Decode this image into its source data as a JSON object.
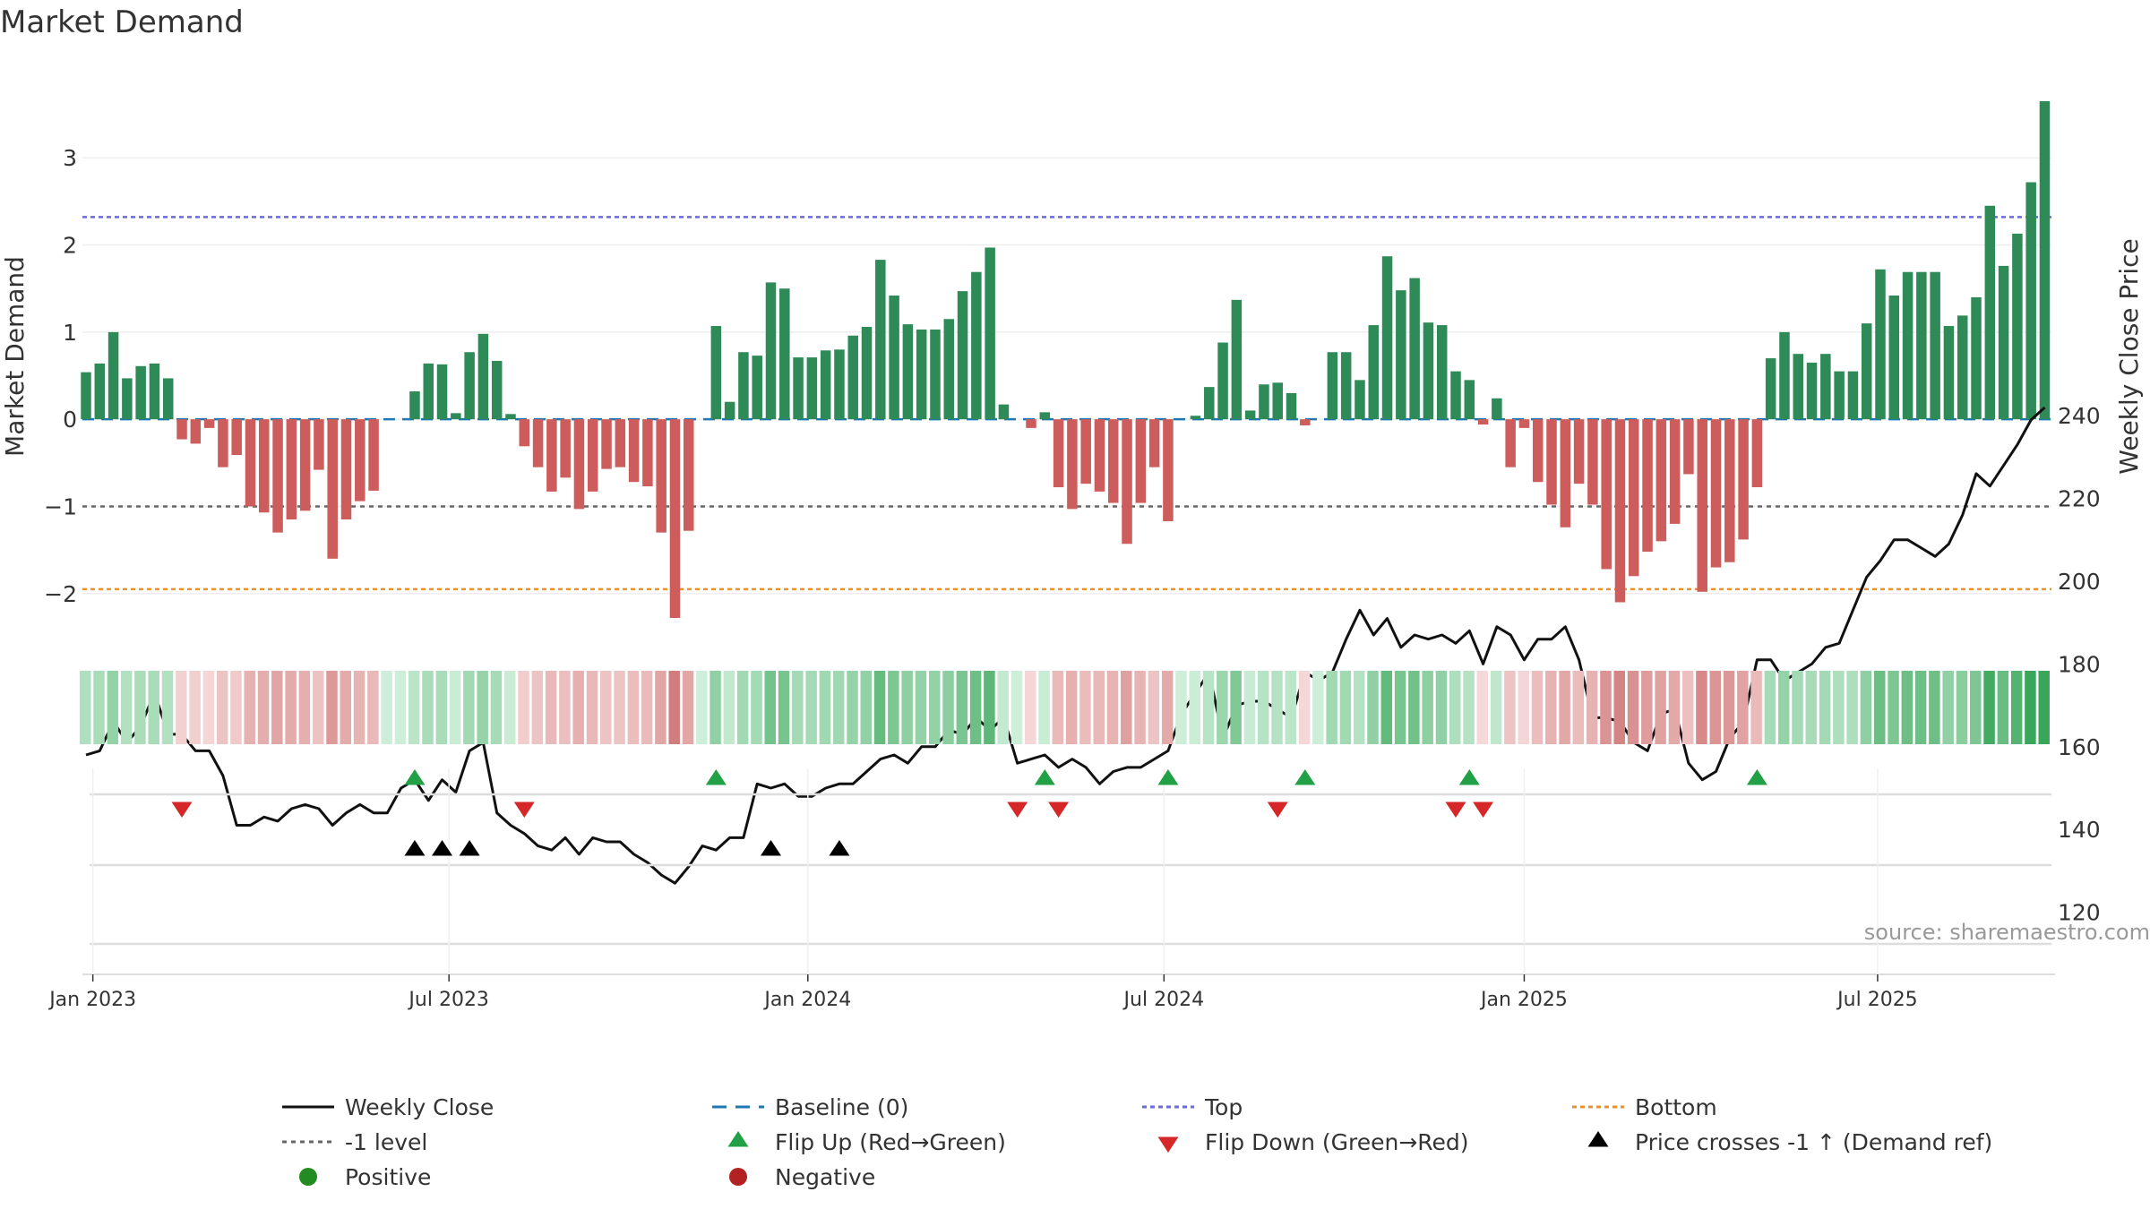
{
  "title": "Market Demand",
  "source": "source: sharemaestro.com",
  "chart_data": {
    "type": "bar",
    "ylabel_left": "Market Demand",
    "ylabel_right": "Weekly Close Price",
    "ylim_left": [
      -2.65,
      3.65
    ],
    "ylim_right": [
      116,
      242
    ],
    "yticks_left": [
      -2,
      -1,
      0,
      1,
      2,
      3
    ],
    "yticks_right": [
      120,
      140,
      160,
      180,
      200,
      220,
      240
    ],
    "ref_lines": {
      "top": 2.32,
      "bottom": -1.95,
      "minus_one": -1,
      "baseline": 0
    },
    "x_ticks": [
      {
        "label": "Jan 2023",
        "week": 0.5
      },
      {
        "label": "Jul 2023",
        "week": 26.5
      },
      {
        "label": "Jan 2024",
        "week": 52.7
      },
      {
        "label": "Jul 2024",
        "week": 78.7
      },
      {
        "label": "Jan 2025",
        "week": 105
      },
      {
        "label": "Jul 2025",
        "week": 130.8
      }
    ],
    "series": [
      {
        "name": "Market Demand",
        "values": [
          0.54,
          0.64,
          1.0,
          0.47,
          0.61,
          0.64,
          0.47,
          -0.23,
          -0.28,
          -0.1,
          -0.55,
          -0.41,
          -1.0,
          -1.07,
          -1.3,
          -1.15,
          -1.05,
          -0.58,
          -1.6,
          -1.15,
          -0.94,
          -0.82,
          0.0,
          0.0,
          0.32,
          0.64,
          0.63,
          0.07,
          0.77,
          0.98,
          0.67,
          0.06,
          -0.31,
          -0.55,
          -0.83,
          -0.67,
          -1.03,
          -0.83,
          -0.57,
          -0.55,
          -0.72,
          -0.77,
          -1.3,
          -2.28,
          -1.28,
          0.0,
          1.07,
          0.2,
          0.77,
          0.73,
          1.57,
          1.5,
          0.71,
          0.71,
          0.79,
          0.8,
          0.96,
          1.06,
          1.83,
          1.42,
          1.09,
          1.03,
          1.03,
          1.15,
          1.47,
          1.69,
          1.97,
          0.17,
          0.0,
          -0.1,
          0.08,
          -0.78,
          -1.03,
          -0.74,
          -0.83,
          -0.96,
          -1.43,
          -0.96,
          -0.55,
          -1.17,
          0.0,
          0.04,
          0.37,
          0.88,
          1.37,
          0.1,
          0.4,
          0.42,
          0.3,
          -0.07,
          0.0,
          0.77,
          0.77,
          0.45,
          1.08,
          1.87,
          1.48,
          1.62,
          1.11,
          1.08,
          0.55,
          0.45,
          -0.06,
          0.24,
          -0.55,
          -0.1,
          -0.72,
          -0.98,
          -1.24,
          -0.74,
          -0.98,
          -1.72,
          -2.1,
          -1.8,
          -1.52,
          -1.4,
          -1.2,
          -0.63,
          -1.98,
          -1.7,
          -1.64,
          -1.38,
          -0.78,
          0.7,
          1.0,
          0.75,
          0.65,
          0.75,
          0.55,
          0.55,
          1.1,
          1.72,
          1.42,
          1.69,
          1.69,
          1.69,
          1.07,
          1.19,
          1.4,
          2.45,
          1.76,
          2.13,
          2.72,
          3.65
        ]
      },
      {
        "name": "Weekly Close",
        "values": [
          158,
          159,
          166,
          161,
          165,
          173,
          163,
          163,
          159,
          159,
          153,
          141,
          141,
          143,
          142,
          145,
          146,
          145,
          141,
          144,
          146,
          144,
          144,
          150,
          152,
          147,
          152,
          149,
          159,
          161,
          144,
          141,
          139,
          136,
          135,
          138,
          134,
          138,
          137,
          137,
          134,
          132,
          129,
          127,
          131,
          136,
          135,
          138,
          138,
          151,
          150,
          151,
          148,
          148,
          150,
          151,
          151,
          154,
          157,
          158,
          156,
          160,
          160,
          164,
          163,
          167,
          164,
          167,
          156,
          157,
          158,
          155,
          157,
          155,
          151,
          154,
          155,
          155,
          157,
          159,
          168,
          173,
          178,
          162,
          170,
          171,
          171,
          169,
          167,
          178,
          176,
          178,
          186,
          193,
          187,
          191,
          184,
          187,
          186,
          187,
          185,
          188,
          180,
          189,
          187,
          181,
          186,
          186,
          189,
          181,
          167,
          167,
          166,
          161,
          159,
          168,
          169,
          156,
          152,
          154,
          162,
          166,
          181,
          181,
          176,
          178,
          180,
          184,
          185,
          193,
          201,
          205,
          210,
          210,
          208,
          206,
          209,
          216,
          226,
          223,
          228,
          233,
          239,
          242
        ]
      }
    ],
    "flip_up_weeks": [
      24,
      46,
      70,
      79,
      89,
      101,
      122
    ],
    "flip_down_weeks": [
      7,
      32,
      68,
      71,
      87,
      100,
      102
    ],
    "price_cross_weeks": [
      24,
      26,
      28,
      50,
      55
    ],
    "legend": {
      "row1": [
        "Weekly Close",
        "Baseline (0)",
        "Top",
        "Bottom"
      ],
      "row2": [
        "-1 level",
        "Flip Up (Red→Green)",
        "Flip Down (Green→Red)",
        "Price crosses -1 ↑ (Demand ref)"
      ],
      "row3": [
        "Positive",
        "Negative"
      ]
    }
  },
  "colors": {
    "positive": "#2e8b57",
    "negative": "#cd5c5c",
    "price_line": "#111111",
    "top_line": "#6a6ad8",
    "bottom_line": "#e8912d",
    "minus_one_line": "#666666",
    "baseline": "#1f77b4",
    "flip_up": "#22a046",
    "flip_down": "#d62728",
    "cross": "#000000",
    "positive_dot": "#228b22",
    "negative_dot": "#b22222"
  }
}
